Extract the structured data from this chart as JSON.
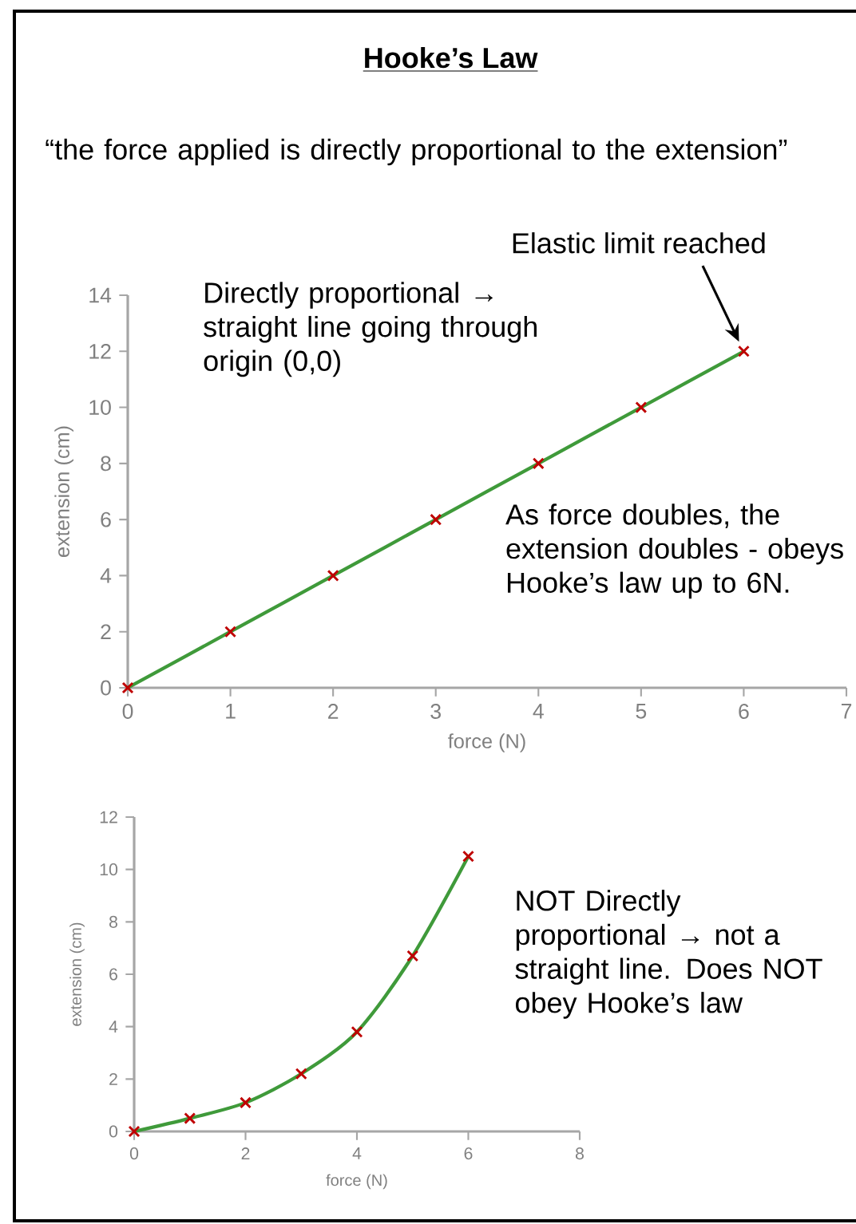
{
  "chart_data": [
    {
      "type": "line",
      "title": "Hooke’s Law",
      "subtitle": "“the force applied is directly proportional to the extension”",
      "xlabel": "force (N)",
      "ylabel": "extension (cm)",
      "x": [
        0,
        1,
        2,
        3,
        4,
        5,
        6
      ],
      "series": [
        {
          "color": "#3f9a3a",
          "values": [
            0,
            2,
            4,
            6,
            8,
            10,
            12
          ]
        }
      ],
      "marker": "cross",
      "line_style": "solid",
      "xlim": [
        0,
        7
      ],
      "xticks": [
        0,
        1,
        2,
        3,
        4,
        5,
        6,
        7
      ],
      "ylim": [
        0,
        14
      ],
      "yticks": [
        0,
        2,
        4,
        6,
        8,
        10,
        12,
        14
      ],
      "annotations": [
        "Elastic limit reached",
        "Directly proportional → straight line going through origin (0,0)",
        "As force doubles, the extension doubles - obeys Hooke’s law up to 6N."
      ]
    },
    {
      "type": "line",
      "xlabel": "force (N)",
      "ylabel": "extension (cm)",
      "x": [
        0,
        1,
        2,
        3,
        4,
        5,
        6
      ],
      "series": [
        {
          "color": "#3f9a3a",
          "values": [
            0,
            0.5,
            1.1,
            2.2,
            3.8,
            6.7,
            10.5
          ]
        }
      ],
      "marker": "cross",
      "line_style": "solid",
      "xlim": [
        0,
        8
      ],
      "xticks": [
        0,
        2,
        4,
        6,
        8
      ],
      "ylim": [
        0,
        12
      ],
      "yticks": [
        0,
        2,
        4,
        6,
        8,
        10,
        12
      ],
      "annotations": [
        "NOT Directly proportional → not a straight line. Does NOT obey Hooke’s law"
      ]
    }
  ]
}
